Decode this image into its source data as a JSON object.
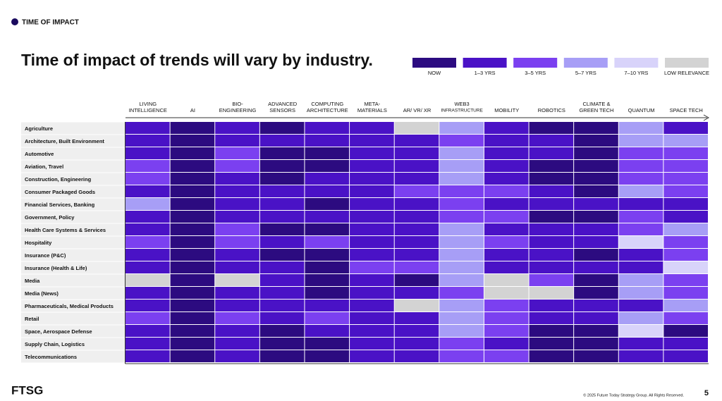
{
  "section": "TIME OF IMPACT",
  "title": "Time of impact of trends will vary by industry.",
  "legend": [
    "NOW",
    "1–3 YRS",
    "3–5 YRS",
    "5–7 YRS",
    "7–10 YRS",
    "LOW RELEVANCE"
  ],
  "legend_colors": [
    "#2c0b80",
    "#4a12c6",
    "#7b40f0",
    "#a79ef6",
    "#d8d3fa",
    "#d3d3d3"
  ],
  "columns": [
    [
      "LIVING",
      "INTELLIGENCE"
    ],
    [
      "AI"
    ],
    [
      "BIO-",
      "ENGINEERING"
    ],
    [
      "ADVANCED",
      "SENSORS"
    ],
    [
      "COMPUTING",
      "ARCHITECTURE"
    ],
    [
      "META-",
      "MATERIALS"
    ],
    [
      "AR/ VR/ XR"
    ],
    [
      "WEB3",
      "INFRASTRUCTURE"
    ],
    [
      "MOBILITY"
    ],
    [
      "ROBOTICS"
    ],
    [
      "CLIMATE &",
      "GREEN TECH"
    ],
    [
      "QUANTUM"
    ],
    [
      "SPACE TECH"
    ]
  ],
  "rows": [
    "Agriculture",
    "Architecture, Built Environment",
    "Automotive",
    "Aviation, Travel",
    "Construction, Engineering",
    "Consumer Packaged Goods",
    "Financial Services, Banking",
    "Government, Policy",
    "Health Care Systems & Services",
    "Hospitality",
    "Insurance (P&C)",
    "Insurance (Health & Life)",
    "Media",
    "Media (News)",
    "Pharmaceuticals, Medical Products",
    "Retail",
    "Space, Aerospace Defense",
    "Supply Chain, Logistics",
    "Telecommunications"
  ],
  "cells": [
    [
      1,
      0,
      1,
      0,
      1,
      1,
      5,
      3,
      1,
      0,
      0,
      3,
      1
    ],
    [
      1,
      0,
      1,
      1,
      1,
      1,
      1,
      2,
      1,
      1,
      0,
      3,
      3
    ],
    [
      1,
      0,
      2,
      0,
      0,
      1,
      1,
      3,
      1,
      1,
      0,
      2,
      2
    ],
    [
      2,
      0,
      2,
      0,
      0,
      1,
      1,
      3,
      1,
      0,
      0,
      2,
      2
    ],
    [
      2,
      0,
      1,
      0,
      1,
      1,
      1,
      3,
      1,
      0,
      0,
      2,
      2
    ],
    [
      1,
      0,
      1,
      1,
      1,
      1,
      2,
      2,
      2,
      1,
      0,
      3,
      2
    ],
    [
      3,
      0,
      1,
      1,
      0,
      1,
      1,
      2,
      1,
      1,
      1,
      1,
      1
    ],
    [
      1,
      0,
      1,
      1,
      1,
      1,
      1,
      2,
      2,
      0,
      0,
      2,
      1
    ],
    [
      1,
      0,
      2,
      0,
      0,
      1,
      1,
      3,
      1,
      1,
      1,
      2,
      3
    ],
    [
      2,
      0,
      2,
      1,
      2,
      1,
      1,
      3,
      2,
      1,
      1,
      4,
      2
    ],
    [
      1,
      0,
      1,
      0,
      0,
      1,
      1,
      3,
      1,
      1,
      0,
      1,
      2
    ],
    [
      1,
      0,
      1,
      1,
      0,
      2,
      2,
      3,
      1,
      1,
      1,
      1,
      4
    ],
    [
      5,
      0,
      5,
      1,
      0,
      1,
      0,
      3,
      5,
      2,
      0,
      3,
      2
    ],
    [
      1,
      0,
      1,
      1,
      0,
      1,
      1,
      2,
      5,
      5,
      0,
      3,
      2
    ],
    [
      1,
      0,
      1,
      1,
      1,
      1,
      5,
      3,
      2,
      1,
      1,
      1,
      3
    ],
    [
      2,
      0,
      2,
      1,
      2,
      1,
      1,
      3,
      2,
      1,
      1,
      3,
      2
    ],
    [
      1,
      0,
      1,
      0,
      1,
      1,
      1,
      3,
      2,
      0,
      0,
      4,
      0
    ],
    [
      1,
      0,
      1,
      0,
      0,
      1,
      1,
      2,
      1,
      0,
      0,
      1,
      1
    ],
    [
      1,
      0,
      1,
      0,
      0,
      1,
      1,
      2,
      2,
      0,
      0,
      1,
      1
    ]
  ],
  "footer": {
    "logo": "FTSG",
    "copyright": "© 2025 Future Today Strategy Group. All Rights Reserved.",
    "page": "5"
  }
}
